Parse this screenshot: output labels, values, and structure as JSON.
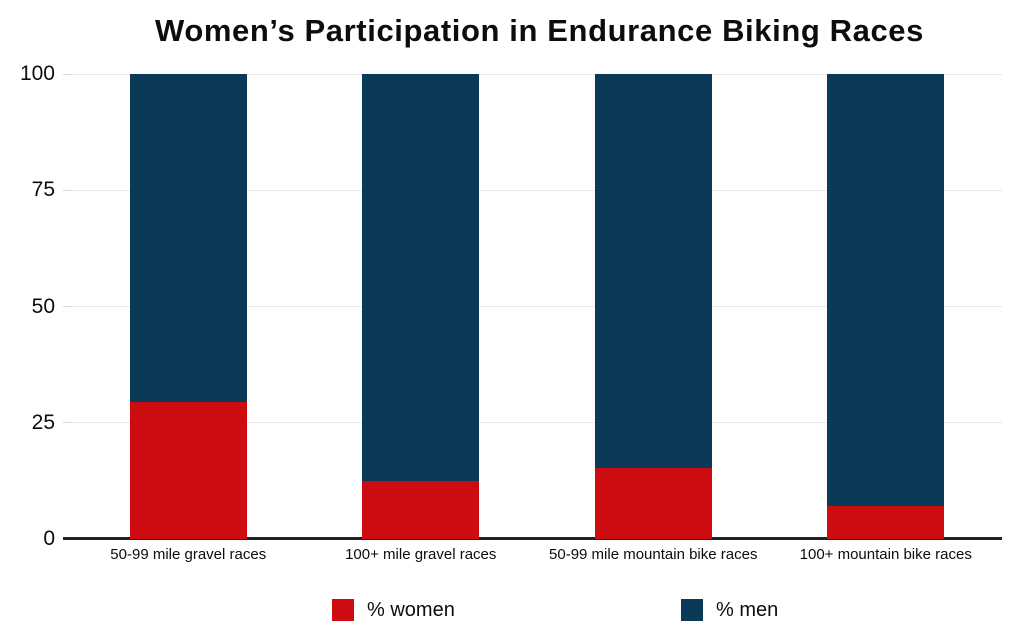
{
  "chart_data": {
    "type": "bar",
    "stacked": true,
    "title": "Women’s Participation in Endurance Biking Races",
    "categories": [
      "50-99 mile gravel races",
      "100+ mile gravel races",
      "50-99 mile mountain bike races",
      "100+ mountain bike races"
    ],
    "series": [
      {
        "name": "% women",
        "color": "#cc0c10",
        "values": [
          29.4,
          12.5,
          15.3,
          7.2
        ]
      },
      {
        "name": "% men",
        "color": "#0b3a58",
        "values": [
          70.6,
          87.5,
          84.7,
          92.8
        ]
      }
    ],
    "xlabel": "",
    "ylabel": "",
    "ylim": [
      0,
      100
    ],
    "yticks": [
      0,
      25,
      50,
      75,
      100
    ],
    "grid": true,
    "legend_position": "bottom"
  },
  "colors": {
    "women": "#cc0c10",
    "men": "#0b3a58",
    "gridline": "#e8e8e8",
    "axis_line": "#222222",
    "text": "#0d0d0d",
    "background": "#ffffff"
  }
}
